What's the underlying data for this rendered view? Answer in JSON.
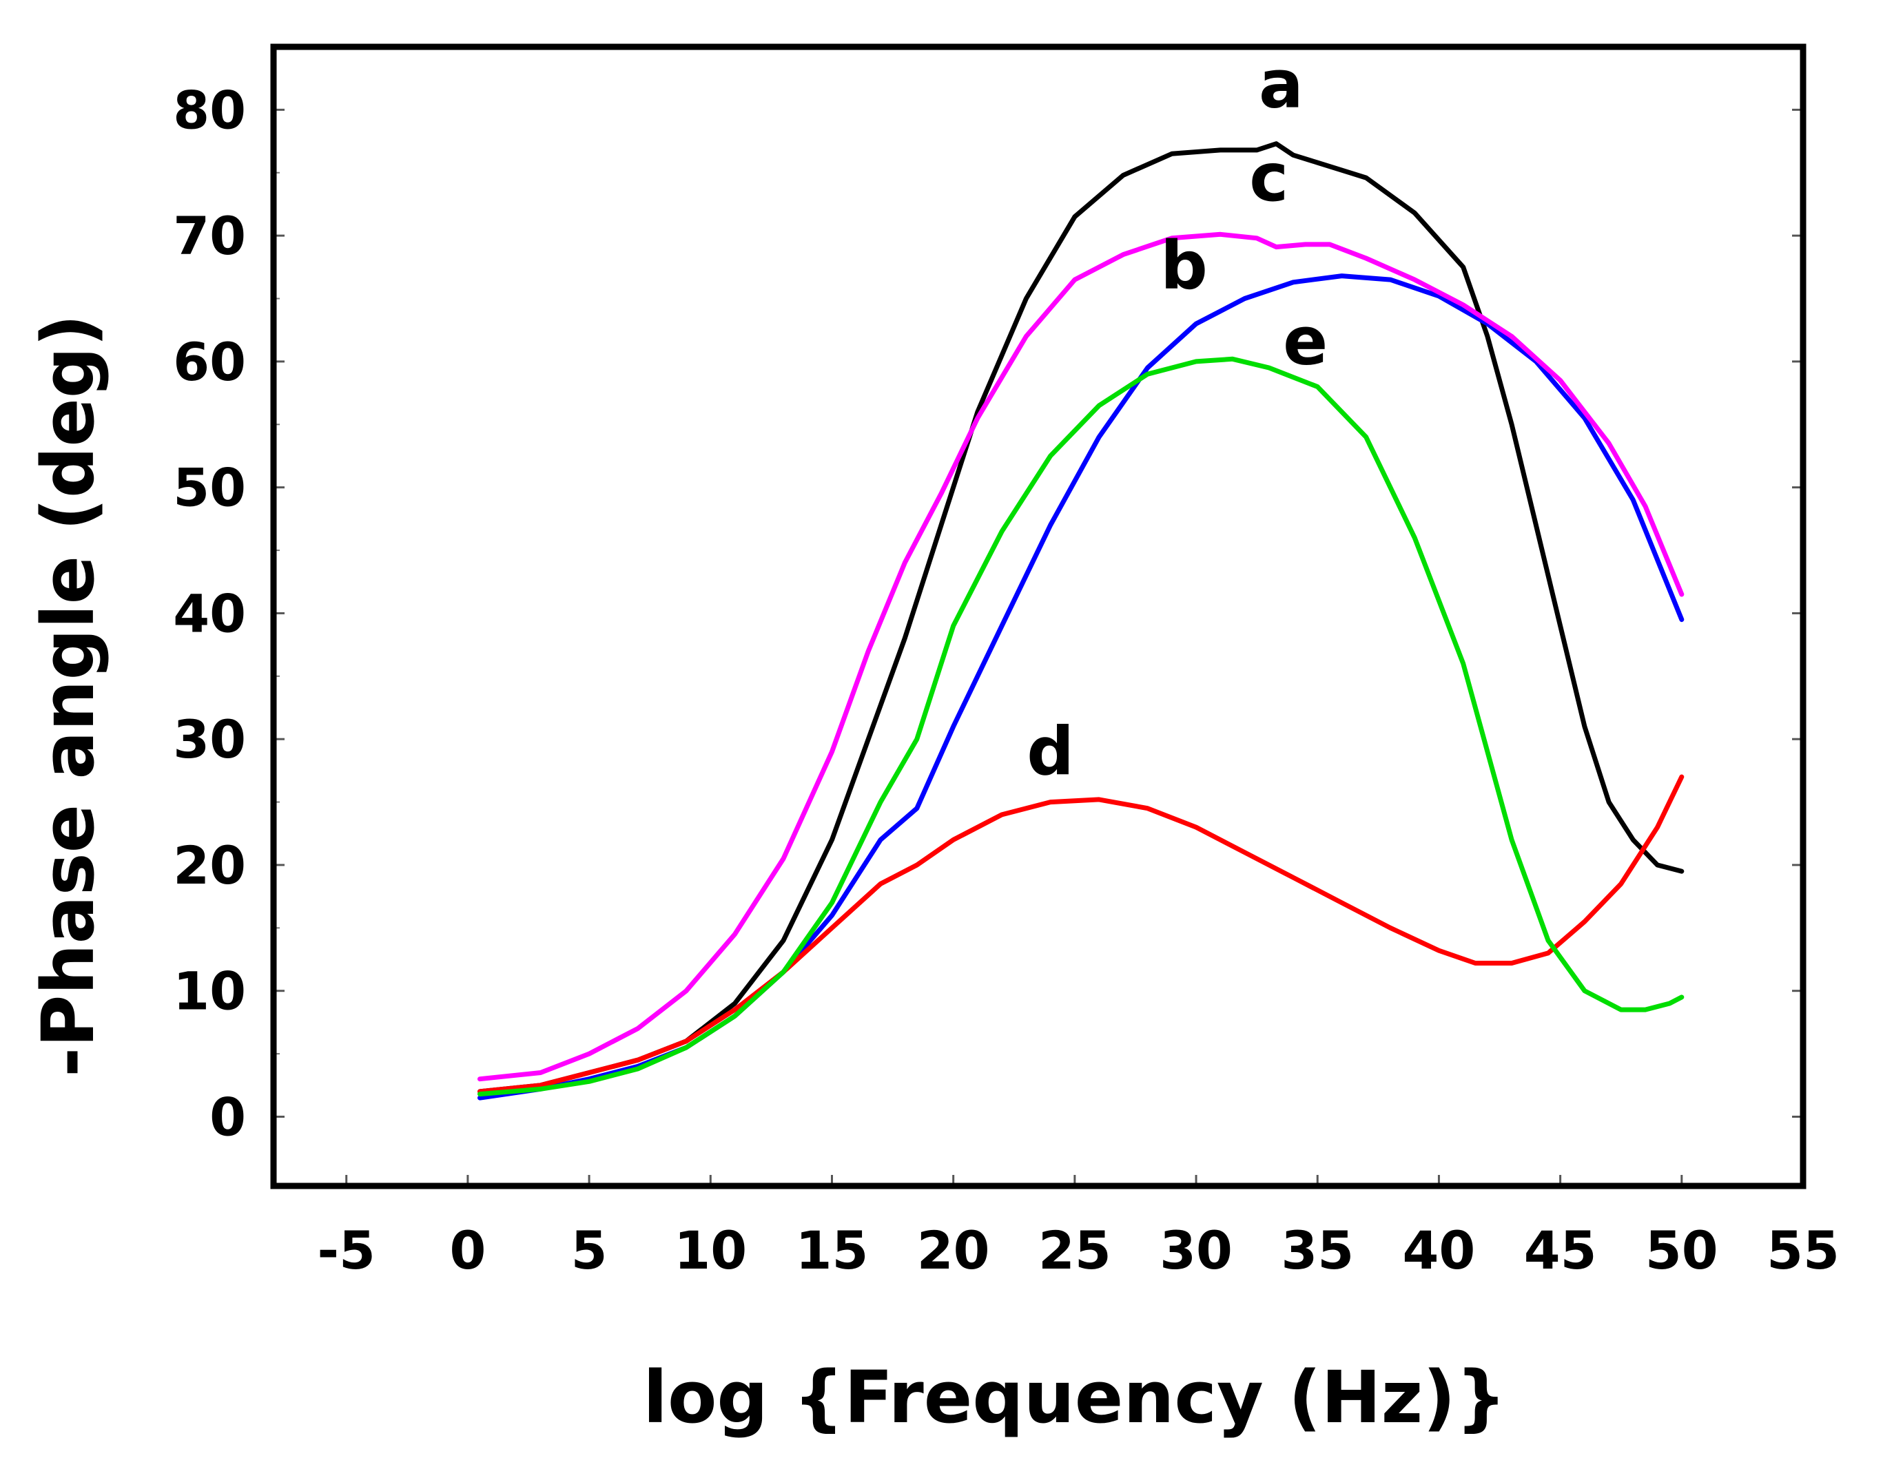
{
  "chart_data": {
    "type": "line",
    "title": "",
    "xlabel": "log {Frequency (Hz)}",
    "ylabel": "-Phase angle (deg)",
    "xlim": [
      -8,
      55
    ],
    "ylim": [
      -5.5,
      85
    ],
    "xticks": [
      -5,
      0,
      5,
      10,
      15,
      20,
      25,
      30,
      35,
      40,
      45,
      50,
      55
    ],
    "xtick_labels": [
      "-5",
      "0",
      "5",
      "10",
      "15",
      "20",
      "25",
      "30",
      "35",
      "40",
      "45",
      "50",
      "55"
    ],
    "yticks": [
      0,
      10,
      20,
      30,
      40,
      50,
      60,
      70,
      80
    ],
    "ytick_labels": [
      "0",
      "10",
      "20",
      "30",
      "40",
      "50",
      "60",
      "70",
      "80"
    ],
    "grid": false,
    "series": [
      {
        "name": "a",
        "color": "#000000",
        "label_pos": [
          33.5,
          80.2
        ],
        "x": [
          0.5,
          3,
          5,
          7,
          9,
          11,
          13,
          15,
          16.5,
          18,
          19.5,
          21,
          23,
          25,
          27,
          29,
          31,
          32.5,
          33.3,
          34,
          35,
          37,
          39,
          41,
          42,
          43,
          44,
          45,
          46,
          47,
          48,
          49,
          50
        ],
        "y": [
          2,
          2.5,
          3.5,
          4.5,
          6,
          9,
          14,
          22,
          30,
          38,
          47,
          56,
          65,
          71.5,
          74.8,
          76.5,
          76.8,
          76.8,
          77.3,
          76.4,
          75.8,
          74.6,
          71.8,
          67.5,
          62,
          55,
          47,
          39,
          31,
          25,
          22,
          20,
          19.5
        ]
      },
      {
        "name": "b",
        "color": "#0000ff",
        "label_pos": [
          29.5,
          65.8
        ],
        "x": [
          0.5,
          3,
          5,
          7,
          9,
          11,
          13,
          15,
          17,
          18.5,
          20,
          22,
          24,
          26,
          28,
          30,
          32,
          34,
          36,
          38,
          40,
          42,
          44,
          46,
          48,
          50
        ],
        "y": [
          1.5,
          2.2,
          3,
          4,
          5.5,
          8,
          11.5,
          16,
          22,
          24.5,
          31,
          39,
          47,
          54,
          59.5,
          63,
          65,
          66.3,
          66.8,
          66.5,
          65.2,
          63,
          60,
          55.5,
          49,
          39.5
        ]
      },
      {
        "name": "c",
        "color": "#ff00ff",
        "label_pos": [
          33,
          72.8
        ],
        "x": [
          0.5,
          3,
          5,
          7,
          9,
          11,
          13,
          15,
          16.5,
          18,
          19.5,
          21,
          23,
          25,
          27,
          29,
          31,
          32.5,
          33.3,
          34.5,
          35.5,
          37,
          39,
          41,
          43,
          45,
          47,
          48.5,
          50
        ],
        "y": [
          3,
          3.5,
          5,
          7,
          10,
          14.5,
          20.5,
          29,
          37,
          44,
          49.5,
          55.5,
          62,
          66.5,
          68.5,
          69.8,
          70.1,
          69.8,
          69.1,
          69.3,
          69.3,
          68.2,
          66.5,
          64.5,
          62,
          58.5,
          53.5,
          48.5,
          41.5
        ]
      },
      {
        "name": "d",
        "color": "#ff0000",
        "label_pos": [
          24,
          27.2
        ],
        "x": [
          0.5,
          3,
          5,
          7,
          9,
          11,
          13,
          15,
          17,
          18.5,
          20,
          22,
          24,
          26,
          28,
          30,
          32,
          34,
          36,
          38,
          40,
          41.5,
          43,
          44.5,
          46,
          47.5,
          49,
          50
        ],
        "y": [
          2,
          2.5,
          3.5,
          4.5,
          6,
          8.5,
          11.5,
          15,
          18.5,
          20,
          22,
          24,
          25,
          25.2,
          24.5,
          23,
          21,
          19,
          17,
          15,
          13.2,
          12.2,
          12.2,
          13,
          15.5,
          18.5,
          23,
          27
        ]
      },
      {
        "name": "e",
        "color": "#00dd00",
        "label_pos": [
          34.5,
          59.8
        ],
        "x": [
          0.5,
          3,
          5,
          7,
          9,
          11,
          13,
          15,
          17,
          18.5,
          20,
          22,
          24,
          26,
          28,
          30,
          31.5,
          33,
          35,
          37,
          39,
          41,
          43,
          44.5,
          46,
          47.5,
          48.5,
          49.5,
          50
        ],
        "y": [
          1.8,
          2.2,
          2.8,
          3.8,
          5.5,
          8,
          11.5,
          17,
          25,
          30,
          39,
          46.5,
          52.5,
          56.5,
          59,
          60,
          60.2,
          59.5,
          58,
          54,
          46,
          36,
          22,
          14,
          10,
          8.5,
          8.5,
          9,
          9.5
        ]
      }
    ]
  }
}
